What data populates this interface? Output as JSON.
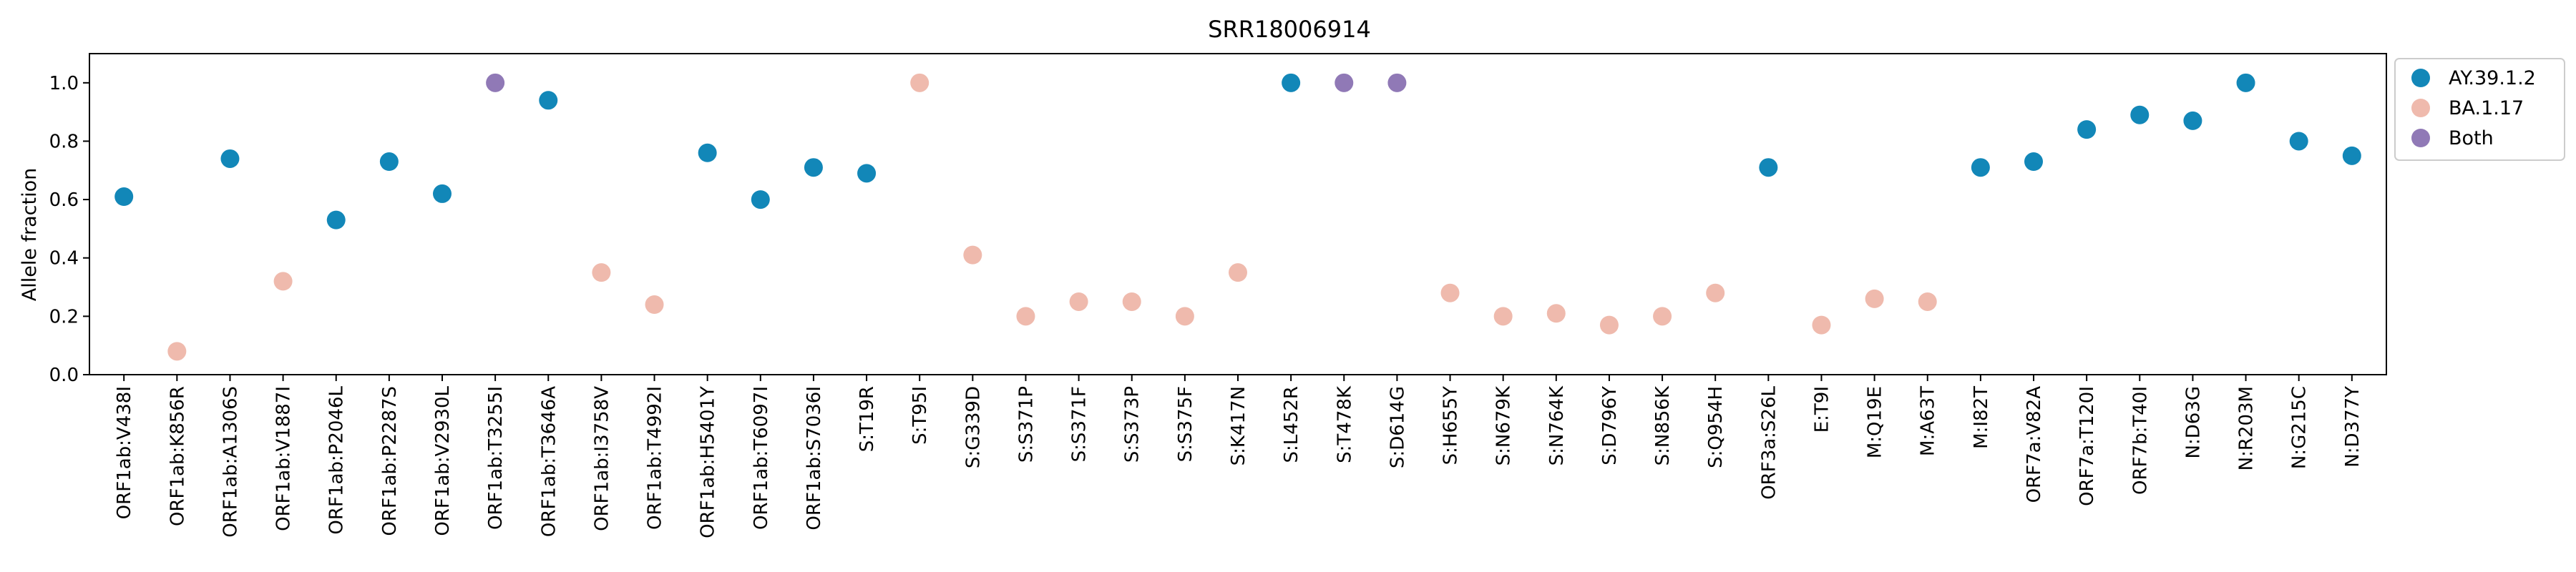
{
  "chart_data": {
    "type": "scatter",
    "title": "SRR18006914",
    "xlabel": "",
    "ylabel": "Allele fraction",
    "ylim": [
      0,
      1.1
    ],
    "yticks": [
      "0.0",
      "0.2",
      "0.4",
      "0.6",
      "0.8",
      "1.0"
    ],
    "grid": false,
    "legend_position": "outside-top-right",
    "categories": [
      "ORF1ab:V438I",
      "ORF1ab:K856R",
      "ORF1ab:A1306S",
      "ORF1ab:V1887I",
      "ORF1ab:P2046L",
      "ORF1ab:P2287S",
      "ORF1ab:V2930L",
      "ORF1ab:T3255I",
      "ORF1ab:T3646A",
      "ORF1ab:I3758V",
      "ORF1ab:T4992I",
      "ORF1ab:H5401Y",
      "ORF1ab:T6097I",
      "ORF1ab:S7036I",
      "S:T19R",
      "S:T95I",
      "S:G339D",
      "S:S371P",
      "S:S371F",
      "S:S373P",
      "S:S375F",
      "S:K417N",
      "S:L452R",
      "S:T478K",
      "S:D614G",
      "S:H655Y",
      "S:N679K",
      "S:N764K",
      "S:D796Y",
      "S:N856K",
      "S:Q954H",
      "ORF3a:S26L",
      "E:T9I",
      "M:Q19E",
      "M:A63T",
      "M:I82T",
      "ORF7a:V82A",
      "ORF7a:T120I",
      "ORF7b:T40I",
      "N:D63G",
      "N:R203M",
      "N:G215C",
      "N:D377Y"
    ],
    "values": [
      0.61,
      0.08,
      0.74,
      0.32,
      0.53,
      0.73,
      0.62,
      1.0,
      0.94,
      0.35,
      0.24,
      0.76,
      0.6,
      0.71,
      0.69,
      1.0,
      0.41,
      0.2,
      0.25,
      0.25,
      0.2,
      0.35,
      1.0,
      1.0,
      1.0,
      0.28,
      0.2,
      0.21,
      0.17,
      0.2,
      0.28,
      0.71,
      0.17,
      0.26,
      0.25,
      0.71,
      0.73,
      0.84,
      0.89,
      0.87,
      1.0,
      0.8,
      0.75
    ],
    "groups": [
      "AY.39.1.2",
      "BA.1.17",
      "AY.39.1.2",
      "BA.1.17",
      "AY.39.1.2",
      "AY.39.1.2",
      "AY.39.1.2",
      "Both",
      "AY.39.1.2",
      "BA.1.17",
      "BA.1.17",
      "AY.39.1.2",
      "AY.39.1.2",
      "AY.39.1.2",
      "AY.39.1.2",
      "BA.1.17",
      "BA.1.17",
      "BA.1.17",
      "BA.1.17",
      "BA.1.17",
      "BA.1.17",
      "BA.1.17",
      "AY.39.1.2",
      "Both",
      "Both",
      "BA.1.17",
      "BA.1.17",
      "BA.1.17",
      "BA.1.17",
      "BA.1.17",
      "BA.1.17",
      "AY.39.1.2",
      "BA.1.17",
      "BA.1.17",
      "BA.1.17",
      "AY.39.1.2",
      "AY.39.1.2",
      "AY.39.1.2",
      "AY.39.1.2",
      "AY.39.1.2",
      "AY.39.1.2",
      "AY.39.1.2",
      "AY.39.1.2"
    ],
    "legend": [
      {
        "name": "AY.39.1.2",
        "color": "#1287b8"
      },
      {
        "name": "BA.1.17",
        "color": "#efbaad"
      },
      {
        "name": "Both",
        "color": "#9079b6"
      }
    ]
  }
}
